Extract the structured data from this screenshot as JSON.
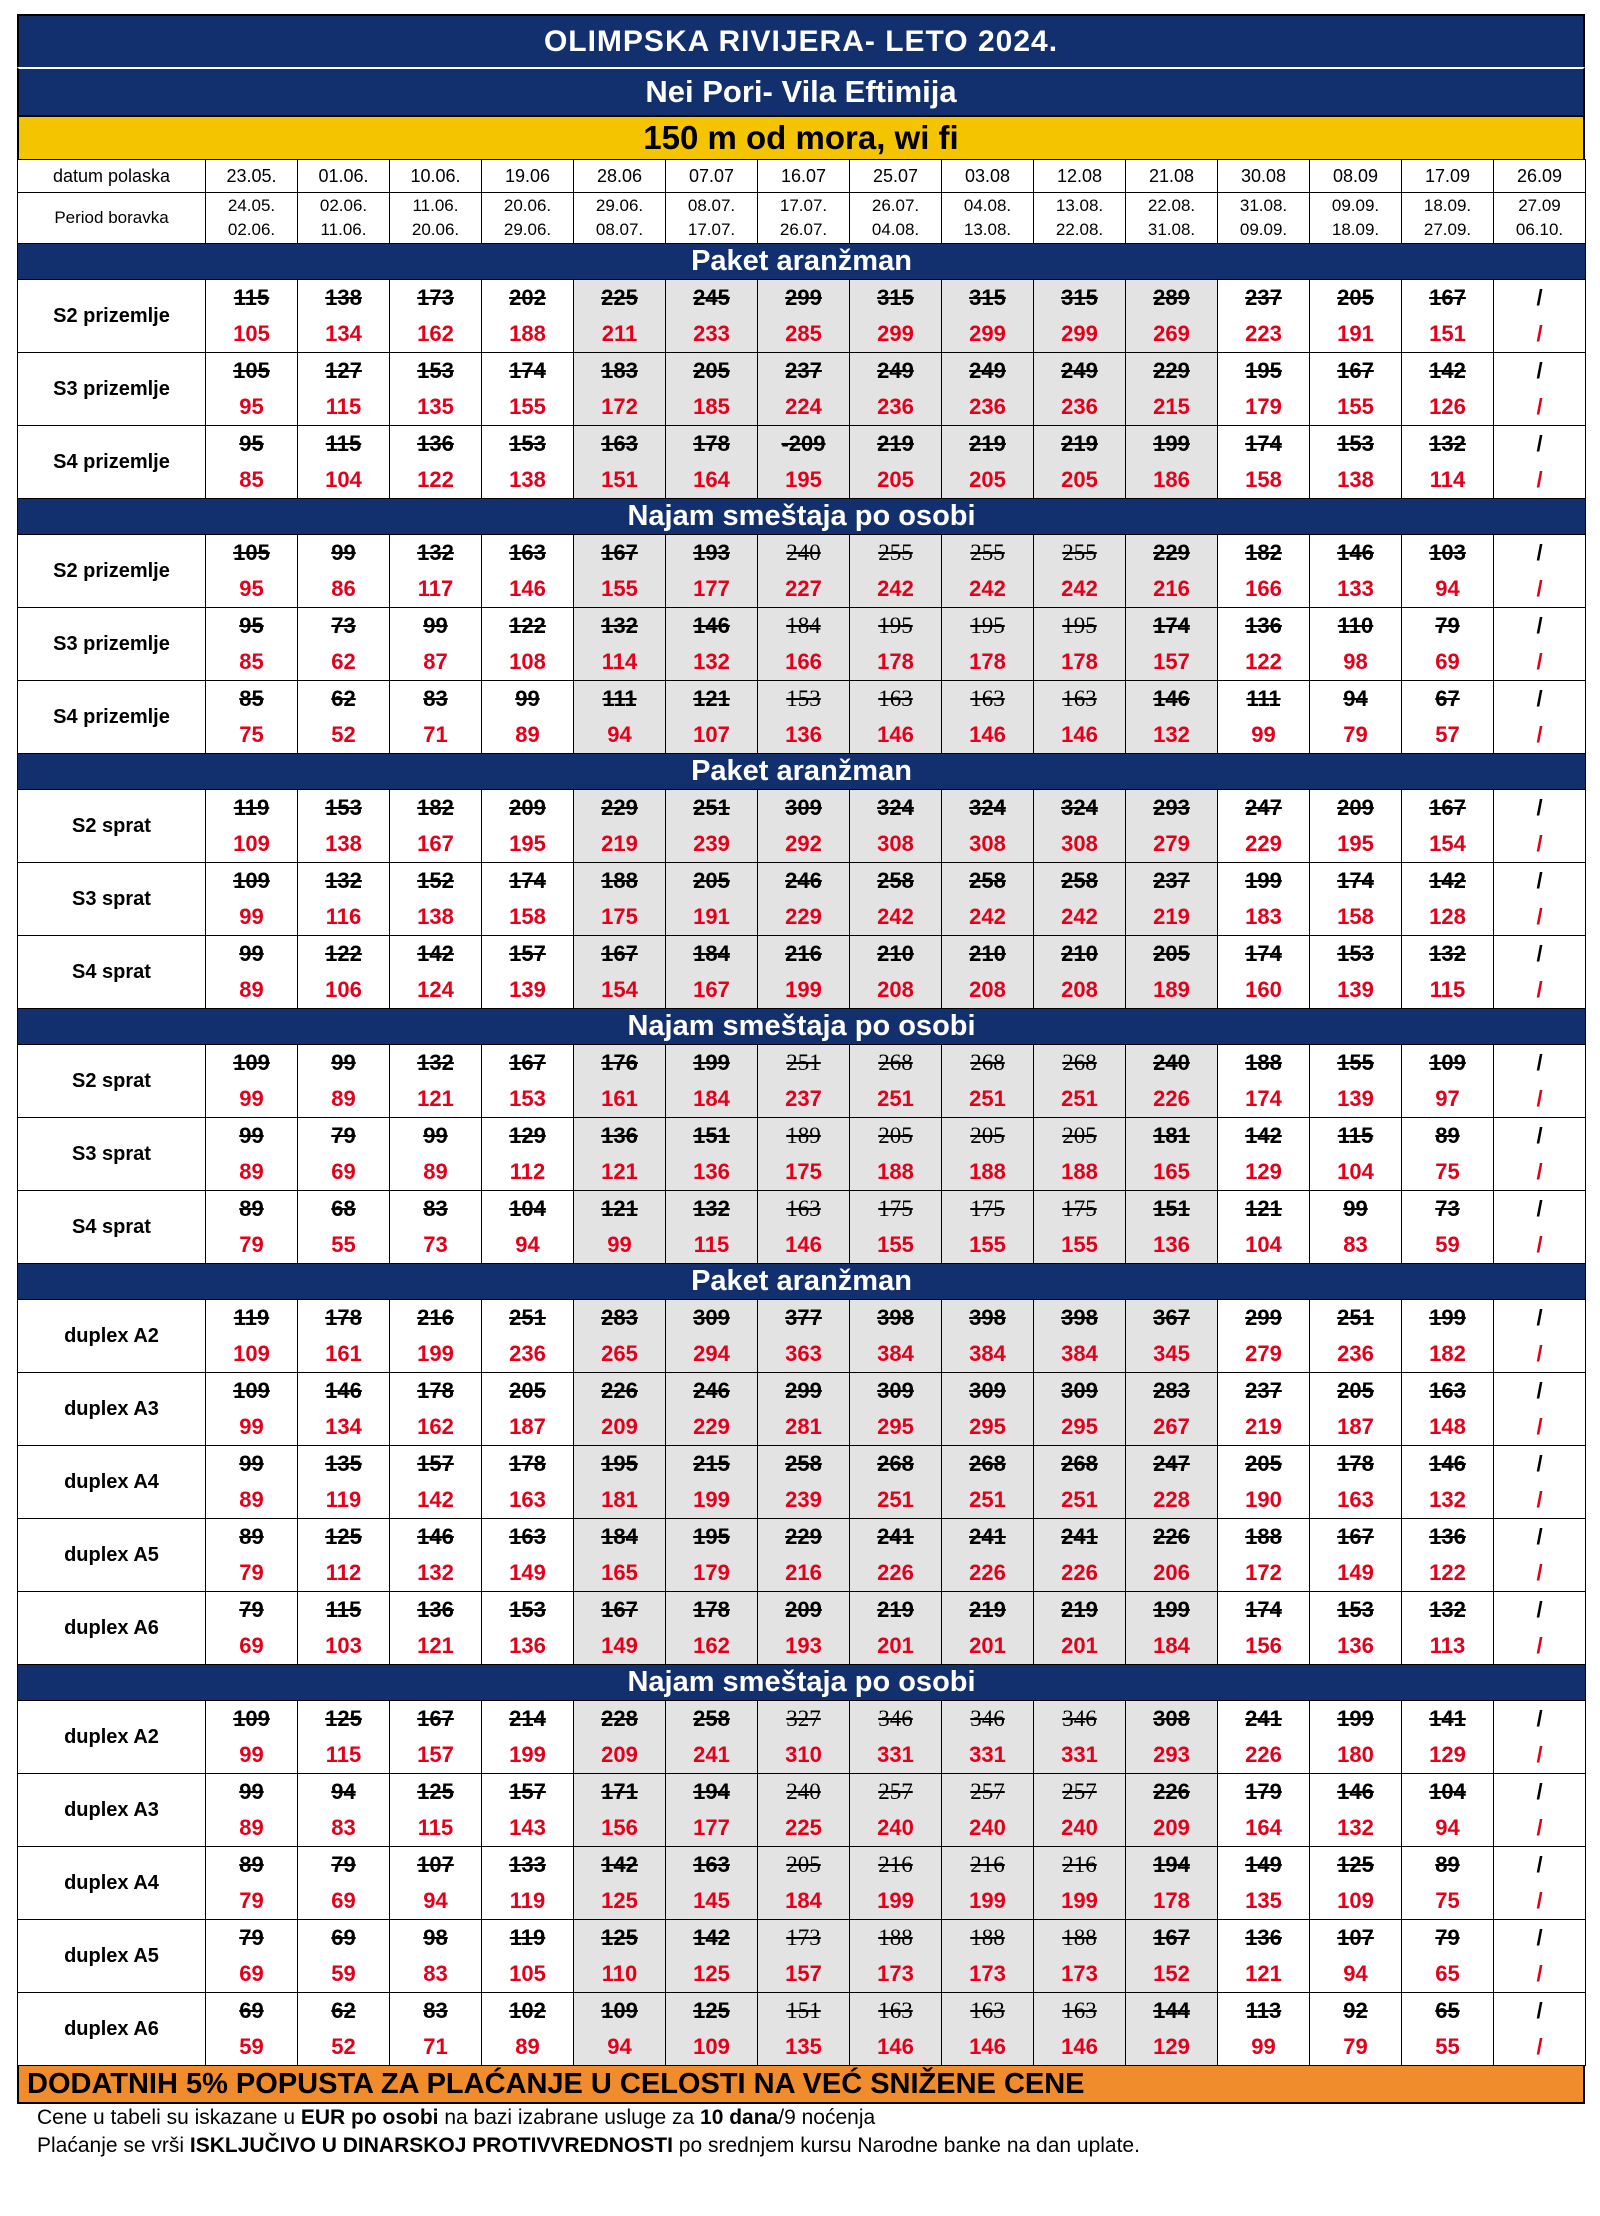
{
  "header": {
    "title": "OLIMPSKA RIVIJERA- LETO 2024.",
    "subtitle": "Nei Pori- Vila Eftimija",
    "tagline": "150 m od mora, wi fi"
  },
  "columns": {
    "departure_label": "datum polaska",
    "period_label": "Period boravka",
    "departures": [
      "23.05.",
      "01.06.",
      "10.06.",
      "19.06",
      "28.06",
      "07.07",
      "16.07",
      "25.07",
      "03.08",
      "12.08",
      "21.08",
      "30.08",
      "08.09",
      "17.09",
      "26.09"
    ],
    "period_start": [
      "24.05.",
      "02.06.",
      "11.06.",
      "20.06.",
      "29.06.",
      "08.07.",
      "17.07.",
      "26.07.",
      "04.08.",
      "13.08.",
      "22.08.",
      "31.08.",
      "09.09.",
      "18.09.",
      "27.09"
    ],
    "period_end": [
      "02.06.",
      "11.06.",
      "20.06.",
      "29.06.",
      "08.07.",
      "17.07.",
      "26.07.",
      "04.08.",
      "13.08.",
      "22.08.",
      "31.08.",
      "09.09.",
      "18.09.",
      "27.09.",
      "06.10."
    ]
  },
  "sections": [
    {
      "title": "Paket aranžman",
      "rows": [
        {
          "label": "S2 prizemlje",
          "old": [
            "115",
            "138",
            "173",
            "202",
            "225",
            "245",
            "299",
            "315",
            "315",
            "315",
            "289",
            "237",
            "205",
            "167",
            "/"
          ],
          "new": [
            "105",
            "134",
            "162",
            "188",
            "211",
            "233",
            "285",
            "299",
            "299",
            "299",
            "269",
            "223",
            "191",
            "151",
            "/"
          ]
        },
        {
          "label": "S3 prizemlje",
          "old": [
            "105",
            "127",
            "153",
            "174",
            "183",
            "205",
            "237",
            "249",
            "249",
            "249",
            "229",
            "195",
            "167",
            "142",
            "/"
          ],
          "new": [
            "95",
            "115",
            "135",
            "155",
            "172",
            "185",
            "224",
            "236",
            "236",
            "236",
            "215",
            "179",
            "155",
            "126",
            "/"
          ]
        },
        {
          "label": "S4 prizemlje",
          "old": [
            "95",
            "115",
            "136",
            "153",
            "163",
            "178",
            "-209",
            "219",
            "219",
            "219",
            "199",
            "174",
            "153",
            "132",
            "/"
          ],
          "new": [
            "85",
            "104",
            "122",
            "138",
            "151",
            "164",
            "195",
            "205",
            "205",
            "205",
            "186",
            "158",
            "138",
            "114",
            "/"
          ]
        }
      ]
    },
    {
      "title": "Najam smeštaja po osobi",
      "rows": [
        {
          "label": "S2 prizemlje",
          "old": [
            "105",
            "99",
            "132",
            "163",
            "167",
            "193",
            "240",
            "255",
            "255",
            "255",
            "229",
            "182",
            "146",
            "103",
            "/"
          ],
          "new": [
            "95",
            "86",
            "117",
            "146",
            "155",
            "177",
            "227",
            "242",
            "242",
            "242",
            "216",
            "166",
            "133",
            "94",
            "/"
          ]
        },
        {
          "label": "S3 prizemlje",
          "old": [
            "95",
            "73",
            "99",
            "122",
            "132",
            "146",
            "184",
            "195",
            "195",
            "195",
            "174",
            "136",
            "110",
            "79",
            "/"
          ],
          "new": [
            "85",
            "62",
            "87",
            "108",
            "114",
            "132",
            "166",
            "178",
            "178",
            "178",
            "157",
            "122",
            "98",
            "69",
            "/"
          ]
        },
        {
          "label": "S4 prizemlje",
          "old": [
            "85",
            "62",
            "83",
            "99",
            "111",
            "121",
            "153",
            "163",
            "163",
            "163",
            "146",
            "111",
            "94",
            "67",
            "/"
          ],
          "new": [
            "75",
            "52",
            "71",
            "89",
            "94",
            "107",
            "136",
            "146",
            "146",
            "146",
            "132",
            "99",
            "79",
            "57",
            "/"
          ]
        }
      ]
    },
    {
      "title": "Paket aranžman",
      "rows": [
        {
          "label": "S2 sprat",
          "old": [
            "119",
            "153",
            "182",
            "209",
            "229",
            "251",
            "309",
            "324",
            "324",
            "324",
            "293",
            "247",
            "209",
            "167",
            "/"
          ],
          "new": [
            "109",
            "138",
            "167",
            "195",
            "219",
            "239",
            "292",
            "308",
            "308",
            "308",
            "279",
            "229",
            "195",
            "154",
            "/"
          ]
        },
        {
          "label": "S3 sprat",
          "old": [
            "109",
            "132",
            "152",
            "174",
            "188",
            "205",
            "246",
            "258",
            "258",
            "258",
            "237",
            "199",
            "174",
            "142",
            "/"
          ],
          "new": [
            "99",
            "116",
            "138",
            "158",
            "175",
            "191",
            "229",
            "242",
            "242",
            "242",
            "219",
            "183",
            "158",
            "128",
            "/"
          ]
        },
        {
          "label": "S4 sprat",
          "old": [
            "99",
            "122",
            "142",
            "157",
            "167",
            "184",
            "216",
            "210",
            "210",
            "210",
            "205",
            "174",
            "153",
            "132",
            "/"
          ],
          "new": [
            "89",
            "106",
            "124",
            "139",
            "154",
            "167",
            "199",
            "208",
            "208",
            "208",
            "189",
            "160",
            "139",
            "115",
            "/"
          ]
        }
      ]
    },
    {
      "title": "Najam smeštaja po osobi",
      "rows": [
        {
          "label": "S2 sprat",
          "old": [
            "109",
            "99",
            "132",
            "167",
            "176",
            "199",
            "251",
            "268",
            "268",
            "268",
            "240",
            "188",
            "155",
            "109",
            "/"
          ],
          "new": [
            "99",
            "89",
            "121",
            "153",
            "161",
            "184",
            "237",
            "251",
            "251",
            "251",
            "226",
            "174",
            "139",
            "97",
            "/"
          ]
        },
        {
          "label": "S3 sprat",
          "old": [
            "99",
            "79",
            "99",
            "129",
            "136",
            "151",
            "189",
            "205",
            "205",
            "205",
            "181",
            "142",
            "115",
            "89",
            "/"
          ],
          "new": [
            "89",
            "69",
            "89",
            "112",
            "121",
            "136",
            "175",
            "188",
            "188",
            "188",
            "165",
            "129",
            "104",
            "75",
            "/"
          ]
        },
        {
          "label": "S4 sprat",
          "old": [
            "89",
            "68",
            "83",
            "104",
            "121",
            "132",
            "163",
            "175",
            "175",
            "175",
            "151",
            "121",
            "99",
            "73",
            "/"
          ],
          "new": [
            "79",
            "55",
            "73",
            "94",
            "99",
            "115",
            "146",
            "155",
            "155",
            "155",
            "136",
            "104",
            "83",
            "59",
            "/"
          ]
        }
      ]
    },
    {
      "title": "Paket aranžman",
      "rows": [
        {
          "label": "duplex A2",
          "old": [
            "119",
            "178",
            "216",
            "251",
            "283",
            "309",
            "377",
            "398",
            "398",
            "398",
            "367",
            "299",
            "251",
            "199",
            "/"
          ],
          "new": [
            "109",
            "161",
            "199",
            "236",
            "265",
            "294",
            "363",
            "384",
            "384",
            "384",
            "345",
            "279",
            "236",
            "182",
            "/"
          ]
        },
        {
          "label": "duplex A3",
          "old": [
            "109",
            "146",
            "178",
            "205",
            "226",
            "246",
            "299",
            "309",
            "309",
            "309",
            "283",
            "237",
            "205",
            "163",
            "/"
          ],
          "new": [
            "99",
            "134",
            "162",
            "187",
            "209",
            "229",
            "281",
            "295",
            "295",
            "295",
            "267",
            "219",
            "187",
            "148",
            "/"
          ]
        },
        {
          "label": "duplex A4",
          "old": [
            "99",
            "135",
            "157",
            "178",
            "195",
            "215",
            "258",
            "268",
            "268",
            "268",
            "247",
            "205",
            "178",
            "146",
            "/"
          ],
          "new": [
            "89",
            "119",
            "142",
            "163",
            "181",
            "199",
            "239",
            "251",
            "251",
            "251",
            "228",
            "190",
            "163",
            "132",
            "/"
          ]
        },
        {
          "label": "duplex A5",
          "old": [
            "89",
            "125",
            "146",
            "163",
            "184",
            "195",
            "229",
            "241",
            "241",
            "241",
            "226",
            "188",
            "167",
            "136",
            "/"
          ],
          "new": [
            "79",
            "112",
            "132",
            "149",
            "165",
            "179",
            "216",
            "226",
            "226",
            "226",
            "206",
            "172",
            "149",
            "122",
            "/"
          ]
        },
        {
          "label": "duplex A6",
          "old": [
            "79",
            "115",
            "136",
            "153",
            "167",
            "178",
            "209",
            "219",
            "219",
            "219",
            "199",
            "174",
            "153",
            "132",
            "/"
          ],
          "new": [
            "69",
            "103",
            "121",
            "136",
            "149",
            "162",
            "193",
            "201",
            "201",
            "201",
            "184",
            "156",
            "136",
            "113",
            "/"
          ]
        }
      ]
    },
    {
      "title": "Najam smeštaja po osobi",
      "rows": [
        {
          "label": "duplex A2",
          "old": [
            "109",
            "125",
            "167",
            "214",
            "228",
            "258",
            "327",
            "346",
            "346",
            "346",
            "308",
            "241",
            "199",
            "141",
            "/"
          ],
          "new": [
            "99",
            "115",
            "157",
            "199",
            "209",
            "241",
            "310",
            "331",
            "331",
            "331",
            "293",
            "226",
            "180",
            "129",
            "/"
          ]
        },
        {
          "label": "duplex A3",
          "old": [
            "99",
            "94",
            "125",
            "157",
            "171",
            "194",
            "240",
            "257",
            "257",
            "257",
            "226",
            "179",
            "146",
            "104",
            "/"
          ],
          "new": [
            "89",
            "83",
            "115",
            "143",
            "156",
            "177",
            "225",
            "240",
            "240",
            "240",
            "209",
            "164",
            "132",
            "94",
            "/"
          ]
        },
        {
          "label": "duplex A4",
          "old": [
            "89",
            "79",
            "107",
            "133",
            "142",
            "163",
            "205",
            "216",
            "216",
            "216",
            "194",
            "149",
            "125",
            "89",
            "/"
          ],
          "new": [
            "79",
            "69",
            "94",
            "119",
            "125",
            "145",
            "184",
            "199",
            "199",
            "199",
            "178",
            "135",
            "109",
            "75",
            "/"
          ]
        },
        {
          "label": "duplex A5",
          "old": [
            "79",
            "69",
            "98",
            "119",
            "125",
            "142",
            "173",
            "188",
            "188",
            "188",
            "167",
            "136",
            "107",
            "79",
            "/"
          ],
          "new": [
            "69",
            "59",
            "83",
            "105",
            "110",
            "125",
            "157",
            "173",
            "173",
            "173",
            "152",
            "121",
            "94",
            "65",
            "/"
          ]
        },
        {
          "label": "duplex A6",
          "old": [
            "69",
            "62",
            "83",
            "102",
            "109",
            "125",
            "151",
            "163",
            "163",
            "163",
            "144",
            "113",
            "92",
            "65",
            "/"
          ],
          "new": [
            "59",
            "52",
            "71",
            "89",
            "94",
            "109",
            "135",
            "146",
            "146",
            "146",
            "129",
            "99",
            "79",
            "55",
            "/"
          ]
        }
      ]
    }
  ],
  "footer": {
    "discount": "DODATNIH 5% POPUSTA ZA PLAĆANJE U CELOSTI NA VEĆ SNIŽENE CENE",
    "note1": {
      "a": "Cene u tabeli su iskazane u ",
      "b": "EUR po osobi",
      "c": " na bazi izabrane usluge za ",
      "d": "10 dana",
      "e": "/9 noćenja"
    },
    "note2": {
      "a": "Plaćanje se vrši  ",
      "b": "ISKLJUČIVO U DINARSKOJ PROTIVVREDNOSTI",
      "c": "  po srednjem kursu Narodne banke na dan uplate."
    }
  },
  "colors": {
    "navy": "#12306e",
    "yellow": "#f5c400",
    "orange": "#f08c2c",
    "red": "#e3001b",
    "shade": "#e3e3e3"
  }
}
